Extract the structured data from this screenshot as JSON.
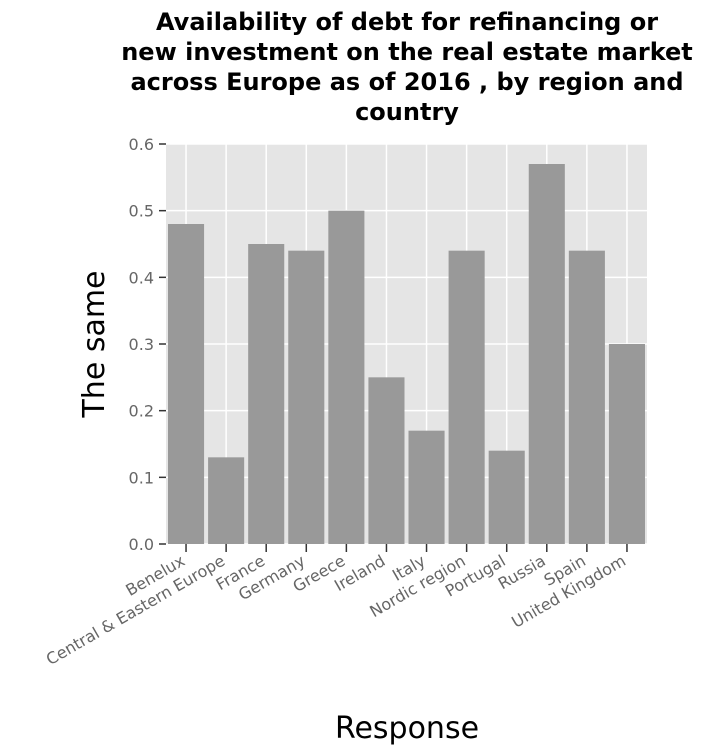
{
  "chart_data": {
    "type": "bar",
    "title_lines": [
      "Availability of debt for refinancing or",
      "new investment on the real estate market",
      "across Europe as of 2016 , by region and",
      "country"
    ],
    "xlabel": "Response",
    "ylabel": "The same",
    "ylim": [
      0,
      0.6
    ],
    "yticks": [
      "0.0",
      "0.1",
      "0.2",
      "0.3",
      "0.4",
      "0.5",
      "0.6"
    ],
    "categories": [
      "Benelux",
      "Central & Eastern Europe",
      "France",
      "Germany",
      "Greece",
      "Ireland",
      "Italy",
      "Nordic region",
      "Portugal",
      "Russia",
      "Spain",
      "United Kingdom"
    ],
    "values": [
      0.48,
      0.13,
      0.45,
      0.44,
      0.5,
      0.25,
      0.17,
      0.44,
      0.14,
      0.57,
      0.44,
      0.3
    ],
    "grid": true,
    "legend": "none",
    "colors": {
      "bar": "#999999",
      "panel": "#e5e5e5",
      "grid": "#ffffff"
    }
  }
}
